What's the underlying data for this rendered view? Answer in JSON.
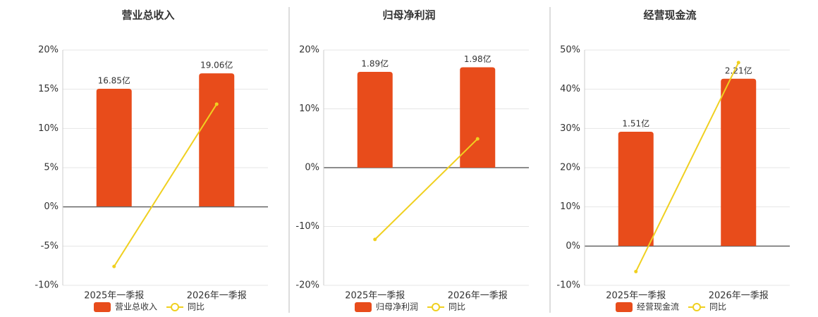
{
  "chart_data": [
    {
      "type": "bar",
      "title": "营业总收入",
      "categories": [
        "2025年一季报",
        "2026年一季报"
      ],
      "series": [
        {
          "name": "营业总收入",
          "type": "bar",
          "axis": "y2",
          "color": "#e84c1b",
          "values": [
            16.85,
            19.06
          ],
          "value_labels": [
            "16.85亿",
            "19.06亿"
          ]
        },
        {
          "name": "同比",
          "type": "line",
          "color": "#f0d020",
          "values": [
            -7.6,
            13.1
          ]
        }
      ],
      "ylim": [
        -10,
        20
      ],
      "yticks": [
        {
          "value": -10,
          "label": "-10%"
        },
        {
          "value": -5,
          "label": "-5%"
        },
        {
          "value": 0,
          "label": "0%"
        },
        {
          "value": 5,
          "label": "5%"
        },
        {
          "value": 10,
          "label": "10%"
        },
        {
          "value": 15,
          "label": "15%"
        },
        {
          "value": 20,
          "label": "20%"
        }
      ],
      "y2lim": [
        -11.3,
        22.4
      ],
      "grid": true
    },
    {
      "type": "bar",
      "title": "归母净利润",
      "categories": [
        "2025年一季报",
        "2026年一季报"
      ],
      "series": [
        {
          "name": "归母净利润",
          "type": "bar",
          "axis": "y2",
          "color": "#e84c1b",
          "values": [
            1.89,
            1.98
          ],
          "value_labels": [
            "1.89亿",
            "1.98亿"
          ]
        },
        {
          "name": "同比",
          "type": "line",
          "color": "#f0d020",
          "values": [
            -12.2,
            4.9
          ]
        }
      ],
      "ylim": [
        -20,
        20
      ],
      "yticks": [
        {
          "value": -20,
          "label": "-20%"
        },
        {
          "value": -10,
          "label": "-10%"
        },
        {
          "value": 0,
          "label": "0%"
        },
        {
          "value": 10,
          "label": "10%"
        },
        {
          "value": 20,
          "label": "20%"
        }
      ],
      "y2lim": [
        -2.32,
        2.32
      ],
      "grid": true
    },
    {
      "type": "bar",
      "title": "经营现金流",
      "categories": [
        "2025年一季报",
        "2026年一季报"
      ],
      "series": [
        {
          "name": "经营现金流",
          "type": "bar",
          "axis": "y2",
          "color": "#e84c1b",
          "values": [
            1.51,
            2.21
          ],
          "value_labels": [
            "1.51亿",
            "2.21亿"
          ]
        },
        {
          "name": "同比",
          "type": "line",
          "color": "#f0d020",
          "values": [
            -6.5,
            46.8
          ]
        }
      ],
      "ylim": [
        -10,
        50
      ],
      "yticks": [
        {
          "value": -10,
          "label": "-10%"
        },
        {
          "value": 0,
          "label": "0%"
        },
        {
          "value": 10,
          "label": "10%"
        },
        {
          "value": 20,
          "label": "20%"
        },
        {
          "value": 30,
          "label": "30%"
        },
        {
          "value": 40,
          "label": "40%"
        },
        {
          "value": 50,
          "label": "50%"
        }
      ],
      "y2lim": [
        -0.52,
        2.59
      ],
      "grid": true
    }
  ]
}
